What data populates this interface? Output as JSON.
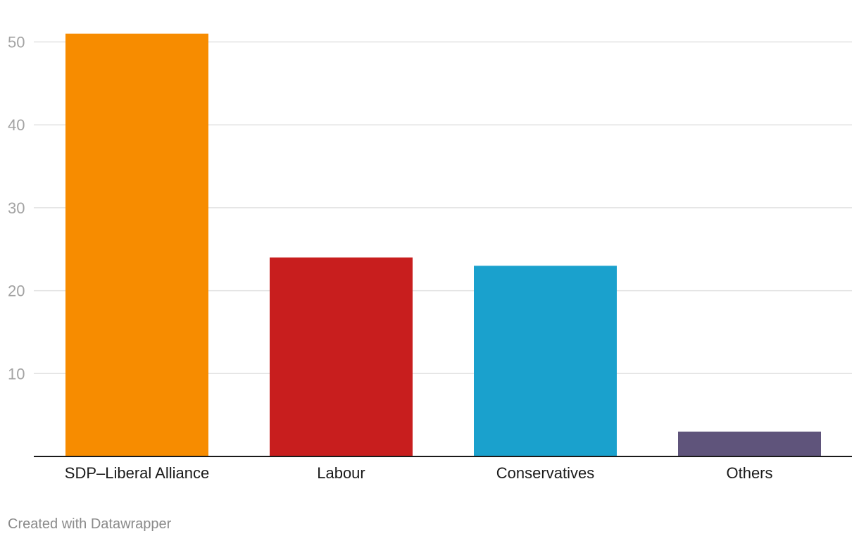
{
  "chart_data": {
    "type": "bar",
    "categories": [
      "SDP–Liberal Alliance",
      "Labour",
      "Conservatives",
      "Others"
    ],
    "values": [
      51,
      24,
      23,
      3
    ],
    "colors": [
      "#f78c00",
      "#c81e1e",
      "#1aa1cd",
      "#5f547b"
    ],
    "yticks": [
      10,
      20,
      30,
      40,
      50
    ],
    "ylim": [
      0,
      55
    ],
    "grid": true,
    "title": "",
    "xlabel": "",
    "ylabel": ""
  },
  "footer": {
    "credit": "Created with Datawrapper"
  }
}
